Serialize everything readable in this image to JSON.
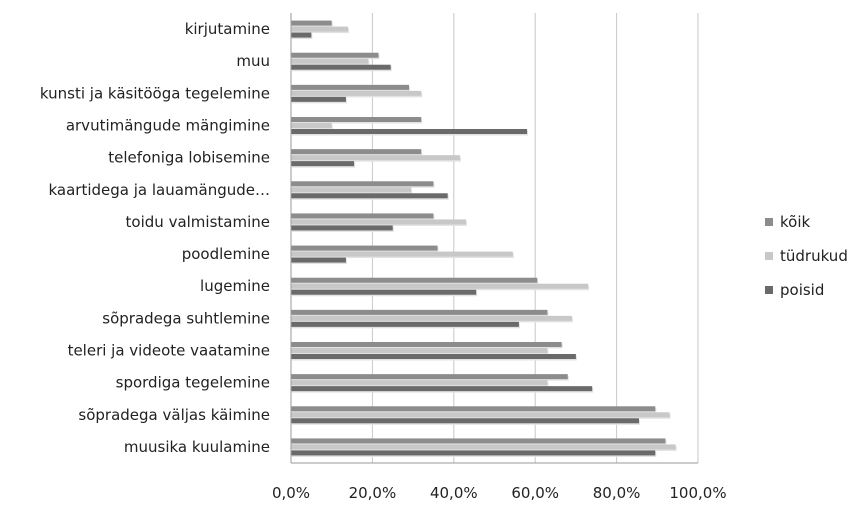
{
  "chart_data": {
    "type": "bar",
    "orientation": "horizontal",
    "categories": [
      "kirjutamine",
      "muu",
      "kunsti ja käsitööga tegelemine",
      "arvutimängude mängimine",
      "telefoniga lobisemine",
      "kaartidega ja lauamängude…",
      "toidu valmistamine",
      "poodlemine",
      "lugemine",
      "sõpradega suhtlemine",
      "teleri ja videote vaatamine",
      "spordiga tegelemine",
      "sõpradega väljas käimine",
      "muusika kuulamine"
    ],
    "series": [
      {
        "name": "kõik",
        "color": "#8c8c8c",
        "values": [
          10,
          21.5,
          29,
          32,
          32,
          35,
          35,
          36,
          60.5,
          63,
          66.5,
          68,
          89.5,
          92
        ]
      },
      {
        "name": "tüdrukud",
        "color": "#c8c8c8",
        "values": [
          14,
          19,
          32,
          10,
          41.5,
          29.5,
          43,
          54.5,
          73,
          69,
          63,
          63,
          93,
          94.5
        ]
      },
      {
        "name": "poisid",
        "color": "#6a6a6a",
        "values": [
          5,
          24.5,
          13.5,
          58,
          15.5,
          38.5,
          25,
          13.5,
          45.5,
          56,
          70,
          74,
          85.5,
          89.5
        ]
      }
    ],
    "x_ticks": [
      "0,0%",
      "20,0%",
      "40,0%",
      "60,0%",
      "80,0%",
      "100,0%"
    ],
    "xlim": [
      0,
      100
    ],
    "grid": true,
    "legend_position": "right",
    "title": "",
    "xlabel": "",
    "ylabel": ""
  }
}
